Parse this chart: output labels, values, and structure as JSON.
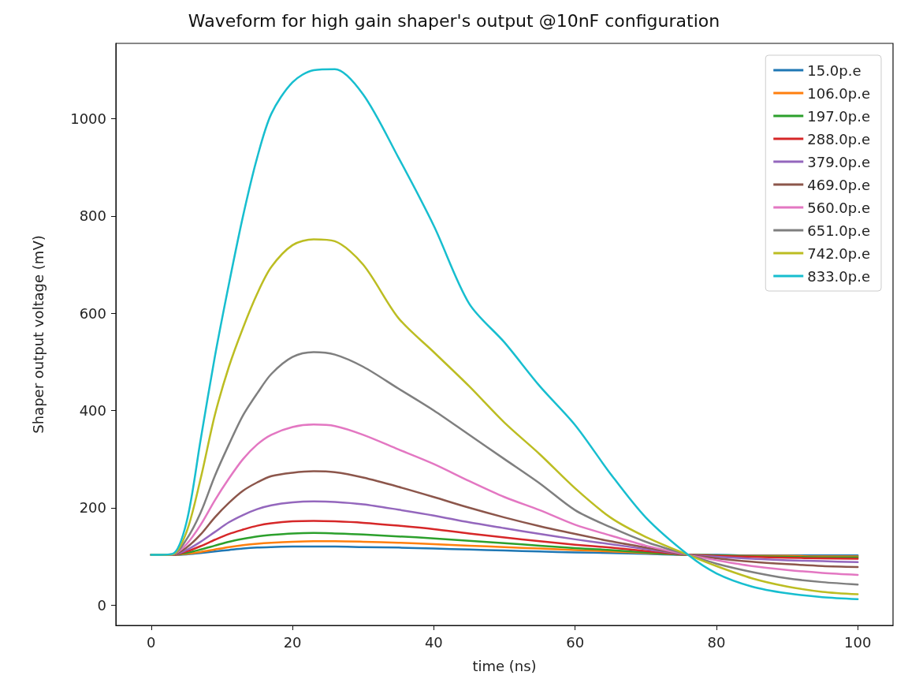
{
  "chart_data": {
    "type": "line",
    "title": "Waveform for high gain shaper's output @10nF configuration",
    "xlabel": "time (ns)",
    "ylabel": "Shaper output voltage (mV)",
    "x": [
      0,
      3,
      5,
      7,
      9,
      11,
      13,
      15,
      17,
      20,
      23,
      26,
      30,
      35,
      40,
      45,
      50,
      55,
      60,
      65,
      70,
      76,
      80,
      85,
      90,
      95,
      100
    ],
    "series": [
      {
        "name": "15.0p.e",
        "color": "#1f77b4",
        "values": [
          103,
          103,
          104,
          107,
          110,
          113,
          116,
          118,
          119,
          120,
          120,
          120,
          119,
          118,
          116,
          114,
          112,
          110,
          108,
          107,
          105,
          103,
          103,
          102,
          102,
          102,
          102
        ]
      },
      {
        "name": "106.0p.e",
        "color": "#ff7f0e",
        "values": [
          103,
          103,
          105,
          109,
          114,
          119,
          123,
          126,
          128,
          130,
          131,
          131,
          130,
          128,
          125,
          122,
          119,
          116,
          113,
          110,
          107,
          103,
          102,
          101,
          101,
          100,
          100
        ]
      },
      {
        "name": "197.0p.e",
        "color": "#2ca02c",
        "values": [
          103,
          103,
          107,
          114,
          122,
          130,
          136,
          141,
          144,
          147,
          148,
          147,
          145,
          141,
          137,
          132,
          127,
          122,
          117,
          113,
          108,
          103,
          102,
          100,
          99,
          98,
          98
        ]
      },
      {
        "name": "288.0p.e",
        "color": "#d62728",
        "values": [
          103,
          103,
          110,
          121,
          134,
          146,
          155,
          163,
          168,
          172,
          173,
          172,
          169,
          163,
          156,
          147,
          139,
          131,
          124,
          118,
          111,
          103,
          101,
          99,
          97,
          96,
          95
        ]
      },
      {
        "name": "379.0p.e",
        "color": "#9467bd",
        "values": [
          103,
          103,
          113,
          130,
          150,
          170,
          185,
          197,
          205,
          211,
          213,
          212,
          207,
          196,
          184,
          170,
          158,
          146,
          135,
          125,
          115,
          103,
          99,
          95,
          92,
          90,
          88
        ]
      },
      {
        "name": "469.0p.e",
        "color": "#8c564b",
        "values": [
          103,
          103,
          118,
          145,
          180,
          210,
          235,
          252,
          265,
          272,
          275,
          273,
          262,
          243,
          222,
          200,
          180,
          162,
          146,
          131,
          118,
          103,
          96,
          89,
          84,
          80,
          78
        ]
      },
      {
        "name": "560.0p.e",
        "color": "#e377c2",
        "values": [
          103,
          104,
          125,
          165,
          215,
          260,
          300,
          330,
          350,
          366,
          371,
          368,
          350,
          320,
          290,
          255,
          222,
          195,
          165,
          143,
          122,
          103,
          92,
          80,
          72,
          66,
          62
        ]
      },
      {
        "name": "651.0p.e",
        "color": "#7f7f7f",
        "values": [
          103,
          104,
          135,
          190,
          265,
          330,
          390,
          435,
          475,
          510,
          520,
          515,
          490,
          445,
          400,
          350,
          300,
          250,
          195,
          160,
          130,
          103,
          85,
          68,
          55,
          47,
          42
        ]
      },
      {
        "name": "742.0p.e",
        "color": "#bcbd22",
        "values": [
          103,
          104,
          150,
          260,
          390,
          490,
          570,
          640,
          695,
          740,
          752,
          748,
          700,
          590,
          520,
          450,
          375,
          310,
          240,
          180,
          140,
          103,
          80,
          55,
          38,
          27,
          22
        ]
      },
      {
        "name": "833.0p.e",
        "color": "#17becf",
        "values": [
          103,
          105,
          170,
          340,
          510,
          660,
          800,
          920,
          1010,
          1075,
          1100,
          1102,
          1050,
          920,
          780,
          620,
          540,
          450,
          370,
          270,
          180,
          103,
          65,
          38,
          24,
          16,
          12
        ]
      }
    ],
    "xlim": [
      -5,
      105
    ],
    "xticks": [
      0,
      20,
      40,
      60,
      80,
      100
    ],
    "ylim": [
      -42,
      1155
    ],
    "yticks": [
      0,
      200,
      400,
      600,
      800,
      1000
    ],
    "legend": "top right",
    "grid": false,
    "line_style": "solid"
  }
}
